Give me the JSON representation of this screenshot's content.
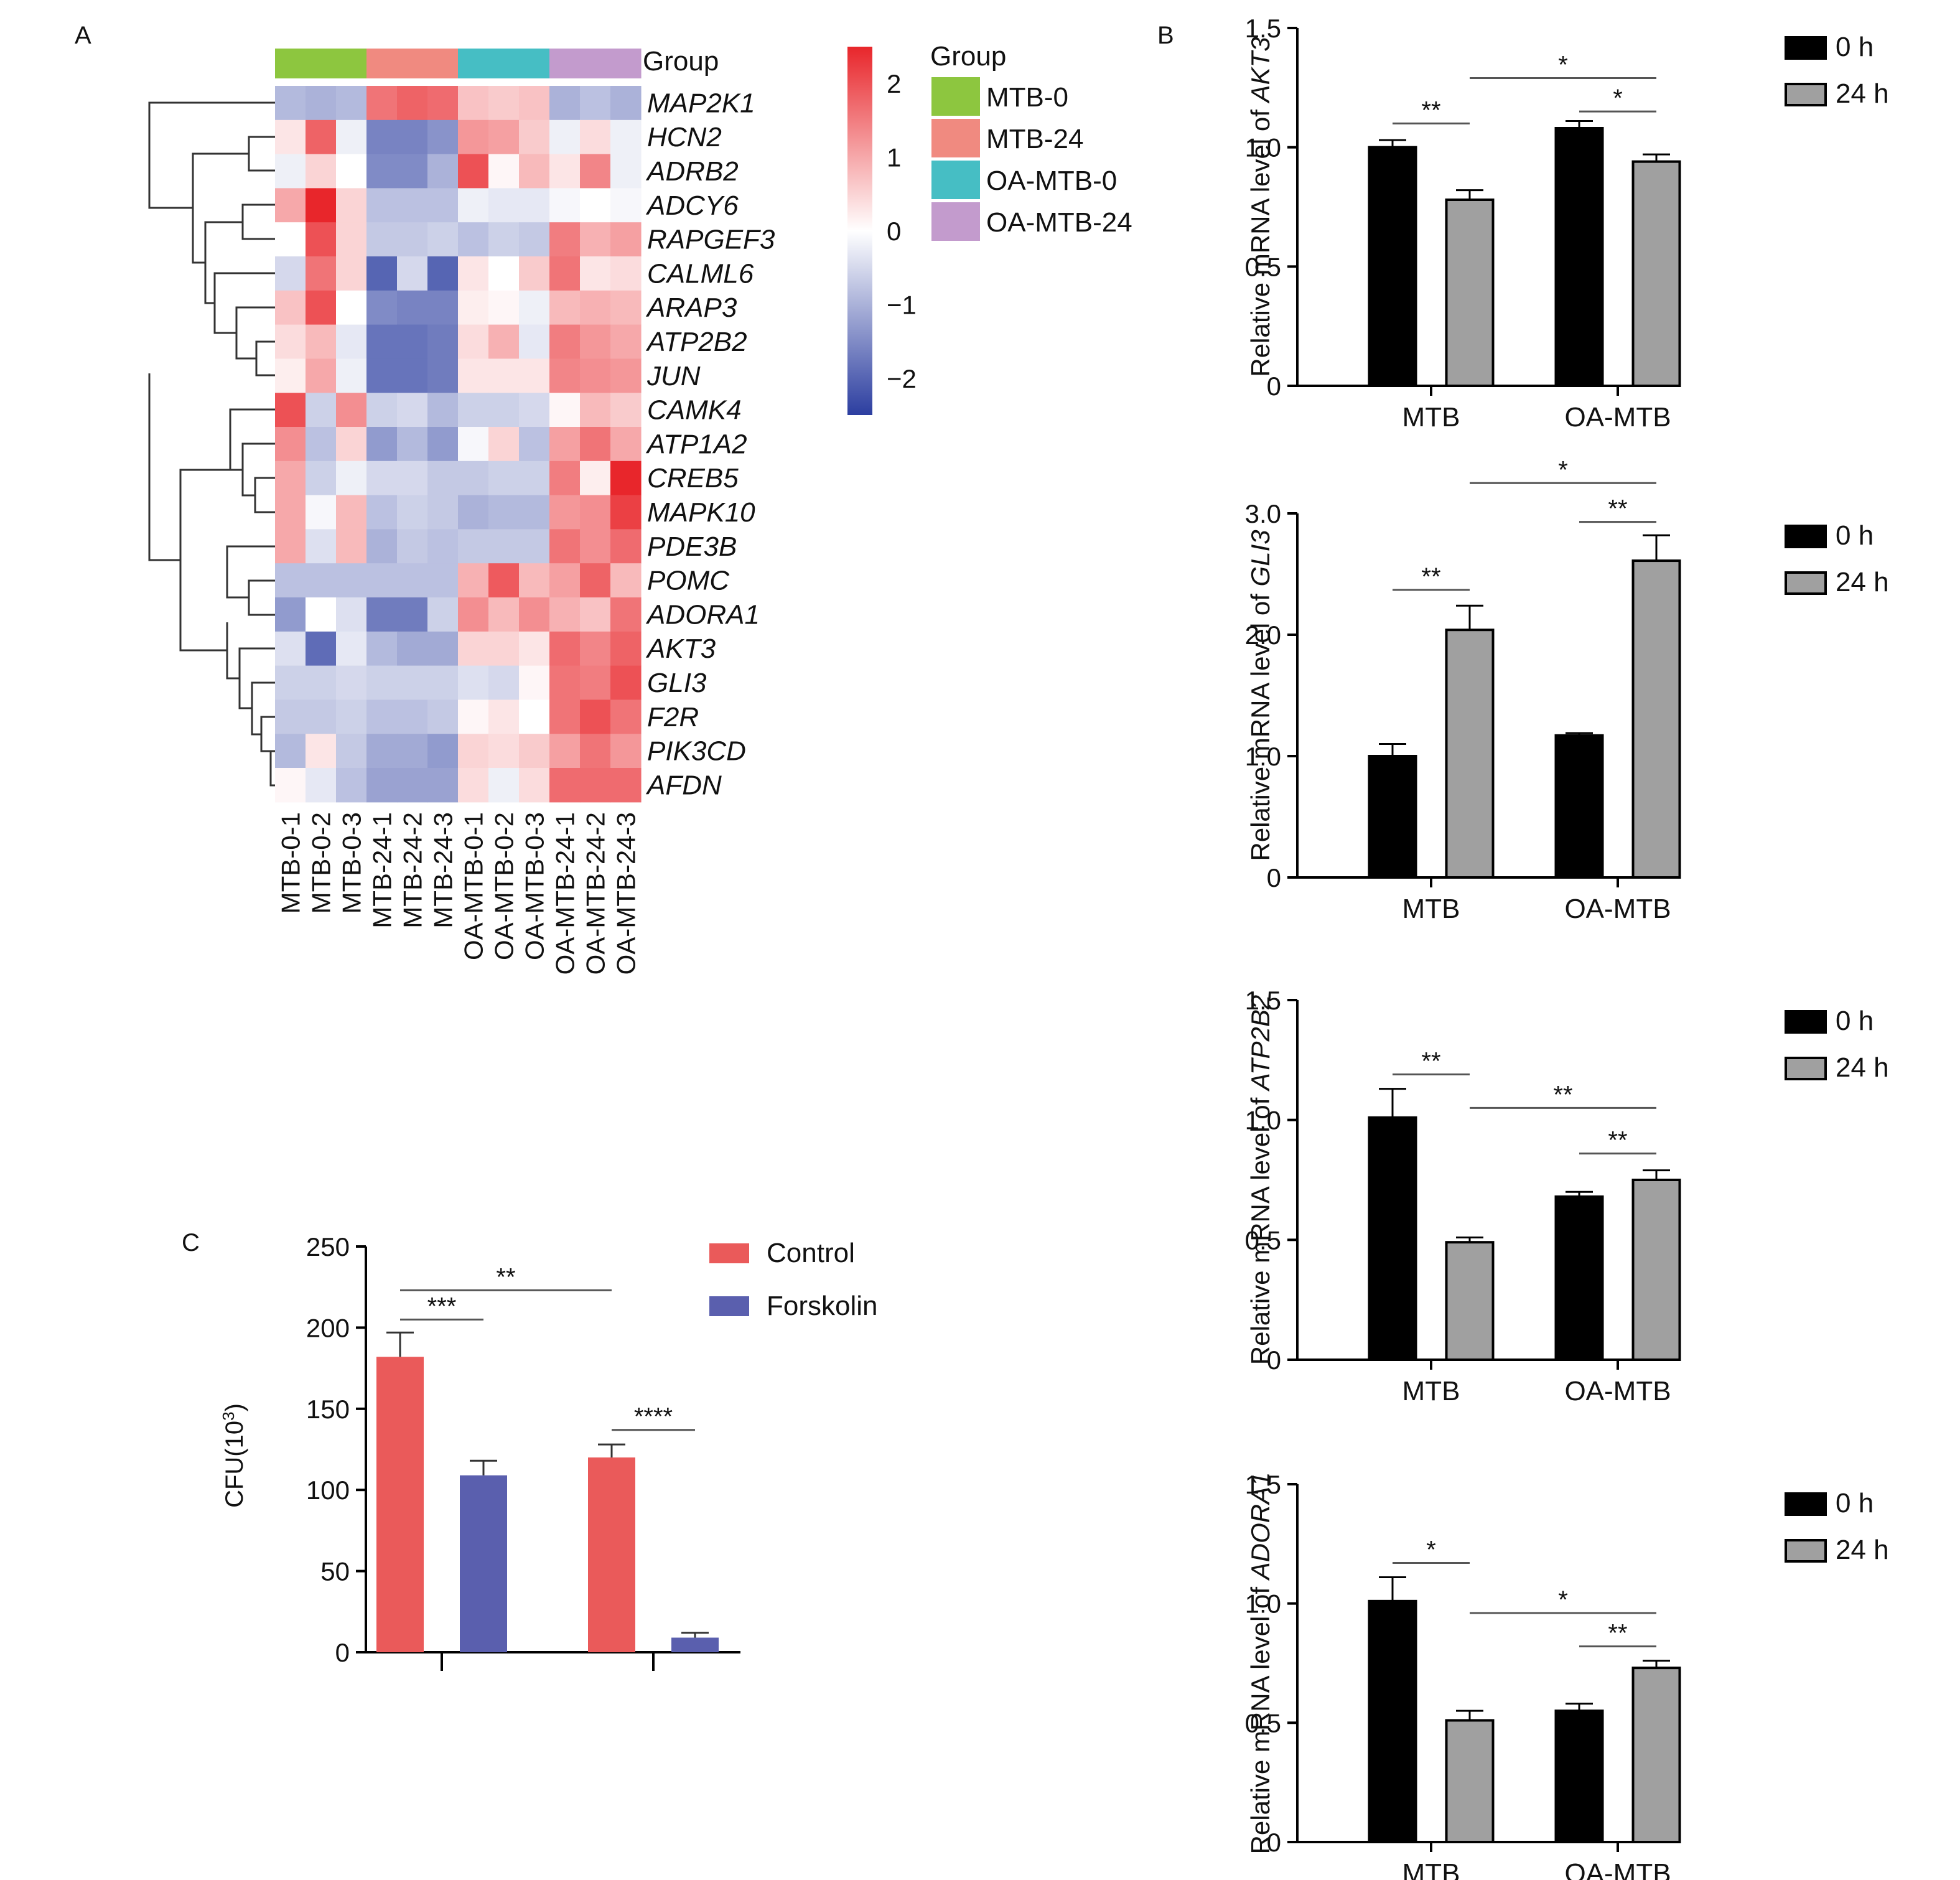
{
  "panel_labels": {
    "a": "A",
    "b": "B",
    "c": "C"
  },
  "heatmap": {
    "group_title": "Group",
    "legend_title": "Group",
    "color_scale": {
      "min": -2.5,
      "max": 2.5,
      "low": "#2c3ea0",
      "mid": "#ffffff",
      "high": "#e8262b",
      "ticks": [
        "2",
        "1",
        "0",
        "−1",
        "−2"
      ]
    },
    "groups": [
      {
        "name": "MTB-0",
        "color": "#8dc63f"
      },
      {
        "name": "MTB-24",
        "color": "#f08a80"
      },
      {
        "name": "OA-MTB-0",
        "color": "#46bec4"
      },
      {
        "name": "OA-MTB-24",
        "color": "#c39bcd"
      }
    ],
    "samples": [
      "MTB-0-1",
      "MTB-0-2",
      "MTB-0-3",
      "MTB-24-1",
      "MTB-24-2",
      "MTB-24-3",
      "OA-MTB-0-1",
      "OA-MTB-0-2",
      "OA-MTB-0-3",
      "OA-MTB-24-1",
      "OA-MTB-24-2",
      "OA-MTB-24-3"
    ],
    "genes": [
      "MAP2K1",
      "HCN2",
      "ADRB2",
      "ADCY6",
      "RAPGEF3",
      "CALML6",
      "ARAP3",
      "ATP2B2",
      "JUN",
      "CAMK4",
      "ATP1A2",
      "CREB5",
      "MAPK10",
      "PDE3B",
      "POMC",
      "ADORA1",
      "AKT3",
      "GLI3",
      "F2R",
      "PIK3CD",
      "AFDN"
    ]
  },
  "chart_data": [
    {
      "type": "heatmap",
      "x": [
        "MTB-0-1",
        "MTB-0-2",
        "MTB-0-3",
        "MTB-24-1",
        "MTB-24-2",
        "MTB-24-3",
        "OA-MTB-0-1",
        "OA-MTB-0-2",
        "OA-MTB-0-3",
        "OA-MTB-24-1",
        "OA-MTB-24-2",
        "OA-MTB-24-3"
      ],
      "y": [
        "MAP2K1",
        "HCN2",
        "ADRB2",
        "ADCY6",
        "RAPGEF3",
        "CALML6",
        "ARAP3",
        "ATP2B2",
        "JUN",
        "CAMK4",
        "ATP1A2",
        "CREB5",
        "MAPK10",
        "PDE3B",
        "POMC",
        "ADORA1",
        "AKT3",
        "GLI3",
        "F2R",
        "PIK3CD",
        "AFDN"
      ],
      "values": [
        [
          -0.9,
          -1.0,
          -0.9,
          1.6,
          1.8,
          1.7,
          0.7,
          0.6,
          0.7,
          -1.0,
          -0.8,
          -1.0
        ],
        [
          0.3,
          1.8,
          -0.2,
          -1.6,
          -1.6,
          -1.4,
          1.2,
          1.1,
          0.6,
          -0.2,
          0.4,
          -0.2
        ],
        [
          -0.2,
          0.5,
          0.0,
          -1.5,
          -1.5,
          -1.0,
          2.0,
          0.1,
          0.8,
          0.3,
          1.4,
          -0.2
        ],
        [
          1.0,
          2.5,
          0.5,
          -0.8,
          -0.8,
          -0.8,
          -0.2,
          -0.3,
          -0.3,
          -0.1,
          0.0,
          -0.1
        ],
        [
          0.0,
          2.0,
          0.5,
          -0.7,
          -0.7,
          -0.6,
          -0.8,
          -0.6,
          -0.7,
          1.5,
          0.9,
          1.1
        ],
        [
          -0.5,
          1.6,
          0.5,
          -2.0,
          -0.5,
          -2.0,
          0.3,
          0.0,
          0.6,
          1.6,
          0.3,
          0.4
        ],
        [
          0.7,
          2.0,
          0.0,
          -1.5,
          -1.6,
          -1.6,
          0.2,
          0.1,
          -0.2,
          0.8,
          0.9,
          0.8
        ],
        [
          0.4,
          0.8,
          -0.3,
          -1.8,
          -1.8,
          -1.7,
          0.4,
          0.9,
          -0.3,
          1.5,
          1.2,
          1.0
        ],
        [
          0.2,
          1.0,
          -0.2,
          -1.8,
          -1.8,
          -1.7,
          0.3,
          0.3,
          0.3,
          1.4,
          1.3,
          1.2
        ],
        [
          2.0,
          -0.6,
          1.3,
          -0.6,
          -0.5,
          -0.9,
          -0.6,
          -0.6,
          -0.5,
          0.1,
          0.8,
          0.6
        ],
        [
          1.3,
          -0.8,
          0.5,
          -1.3,
          -0.9,
          -1.3,
          -0.1,
          0.5,
          -0.8,
          1.1,
          1.6,
          1.0
        ],
        [
          1.0,
          -0.6,
          -0.2,
          -0.5,
          -0.5,
          -0.7,
          -0.7,
          -0.6,
          -0.6,
          1.5,
          0.2,
          2.5
        ],
        [
          1.0,
          -0.1,
          0.8,
          -0.8,
          -0.6,
          -0.7,
          -1.0,
          -0.9,
          -0.9,
          1.2,
          1.3,
          2.2
        ],
        [
          1.0,
          -0.4,
          0.8,
          -1.0,
          -0.7,
          -0.8,
          -0.7,
          -0.7,
          -0.7,
          1.6,
          1.3,
          1.7
        ],
        [
          -0.8,
          -0.8,
          -0.8,
          -0.8,
          -0.8,
          -0.8,
          0.9,
          1.9,
          0.8,
          1.1,
          1.8,
          0.8
        ],
        [
          -1.3,
          0.0,
          -0.4,
          -1.7,
          -1.7,
          -0.6,
          1.3,
          0.8,
          1.3,
          0.9,
          0.7,
          1.6
        ],
        [
          -0.4,
          -1.9,
          -0.3,
          -0.9,
          -1.1,
          -1.1,
          0.5,
          0.5,
          0.3,
          1.7,
          1.4,
          1.8
        ],
        [
          -0.6,
          -0.6,
          -0.5,
          -0.6,
          -0.6,
          -0.6,
          -0.4,
          -0.5,
          0.1,
          1.6,
          1.5,
          2.0
        ],
        [
          -0.7,
          -0.7,
          -0.6,
          -0.8,
          -0.8,
          -0.7,
          0.1,
          0.3,
          0.0,
          1.6,
          2.0,
          1.6
        ],
        [
          -0.9,
          0.3,
          -0.7,
          -1.1,
          -1.1,
          -1.3,
          0.5,
          0.4,
          0.6,
          1.1,
          1.6,
          1.2
        ],
        [
          0.1,
          -0.3,
          -0.8,
          -1.2,
          -1.2,
          -1.2,
          0.4,
          -0.2,
          0.4,
          1.7,
          1.7,
          1.7
        ]
      ]
    },
    {
      "type": "bar",
      "categories": [
        "MTB",
        "OA-MTB"
      ],
      "ylabel_prefix": "Relative mRNA level of ",
      "ylabel_gene": "AKT3",
      "ylim": [
        0,
        1.5
      ],
      "ticks": [
        {
          "v": 0,
          "t": "0"
        },
        {
          "v": 0.5,
          "t": "0.5"
        },
        {
          "v": 1.0,
          "t": "1.0"
        },
        {
          "v": 1.5,
          "t": "1.5"
        }
      ],
      "series": [
        {
          "name": "0 h",
          "values": [
            1.0,
            1.08
          ],
          "errors": [
            0.03,
            0.03
          ]
        },
        {
          "name": "24 h",
          "values": [
            0.78,
            0.94
          ],
          "errors": [
            0.04,
            0.03
          ]
        }
      ],
      "significance": [
        {
          "label": "**",
          "from": [
            0,
            0
          ],
          "to": [
            0,
            1
          ],
          "y": 1.1
        },
        {
          "label": "*",
          "from": [
            1,
            0
          ],
          "to": [
            1,
            1
          ],
          "y": 1.15
        },
        {
          "label": "*",
          "from": [
            0,
            1
          ],
          "to": [
            1,
            1
          ],
          "y": 1.29
        }
      ]
    },
    {
      "type": "bar",
      "categories": [
        "MTB",
        "OA-MTB"
      ],
      "ylabel_prefix": "Relative mRNA level of ",
      "ylabel_gene": "GLI3",
      "ylim": [
        0,
        3.0
      ],
      "ticks": [
        {
          "v": 0,
          "t": "0"
        },
        {
          "v": 1.0,
          "t": "1.0"
        },
        {
          "v": 2.0,
          "t": "2.0"
        },
        {
          "v": 3.0,
          "t": "3.0"
        }
      ],
      "series": [
        {
          "name": "0 h",
          "values": [
            1.0,
            1.17
          ],
          "errors": [
            0.1,
            0.02
          ]
        },
        {
          "name": "24 h",
          "values": [
            2.04,
            2.61
          ],
          "errors": [
            0.2,
            0.21
          ]
        }
      ],
      "significance": [
        {
          "label": "**",
          "from": [
            0,
            0
          ],
          "to": [
            0,
            1
          ],
          "y": 2.37
        },
        {
          "label": "**",
          "from": [
            1,
            0
          ],
          "to": [
            1,
            1
          ],
          "y": 2.93
        },
        {
          "label": "*",
          "from": [
            0,
            1
          ],
          "to": [
            1,
            1
          ],
          "y": 3.25
        }
      ]
    },
    {
      "type": "bar",
      "categories": [
        "MTB",
        "OA-MTB"
      ],
      "ylabel_prefix": "Relative mRNA level of ",
      "ylabel_gene": "ATP2B2",
      "ylim": [
        0,
        1.5
      ],
      "ticks": [
        {
          "v": 0,
          "t": "0"
        },
        {
          "v": 0.5,
          "t": "0.5"
        },
        {
          "v": 1.0,
          "t": "1.0"
        },
        {
          "v": 1.5,
          "t": "1.5"
        }
      ],
      "series": [
        {
          "name": "0 h",
          "values": [
            1.01,
            0.68
          ],
          "errors": [
            0.12,
            0.02
          ]
        },
        {
          "name": "24 h",
          "values": [
            0.49,
            0.75
          ],
          "errors": [
            0.02,
            0.04
          ]
        }
      ],
      "significance": [
        {
          "label": "**",
          "from": [
            0,
            0
          ],
          "to": [
            0,
            1
          ],
          "y": 1.19
        },
        {
          "label": "**",
          "from": [
            1,
            0
          ],
          "to": [
            1,
            1
          ],
          "y": 0.86
        },
        {
          "label": "**",
          "from": [
            0,
            1
          ],
          "to": [
            1,
            1
          ],
          "y": 1.05
        }
      ]
    },
    {
      "type": "bar",
      "categories": [
        "MTB",
        "OA-MTB"
      ],
      "ylabel_prefix": "Relative mRNA level of ",
      "ylabel_gene": "ADORA1",
      "ylim": [
        0,
        1.5
      ],
      "ticks": [
        {
          "v": 0,
          "t": "0"
        },
        {
          "v": 0.5,
          "t": "0.5"
        },
        {
          "v": 1.0,
          "t": "1.0"
        },
        {
          "v": 1.5,
          "t": "1.5"
        }
      ],
      "series": [
        {
          "name": "0 h",
          "values": [
            1.01,
            0.55
          ],
          "errors": [
            0.1,
            0.03
          ]
        },
        {
          "name": "24 h",
          "values": [
            0.51,
            0.73
          ],
          "errors": [
            0.04,
            0.03
          ]
        }
      ],
      "significance": [
        {
          "label": "*",
          "from": [
            0,
            0
          ],
          "to": [
            0,
            1
          ],
          "y": 1.17
        },
        {
          "label": "**",
          "from": [
            1,
            0
          ],
          "to": [
            1,
            1
          ],
          "y": 0.82
        },
        {
          "label": "*",
          "from": [
            0,
            1
          ],
          "to": [
            1,
            1
          ],
          "y": 0.96
        }
      ]
    },
    {
      "type": "bar",
      "ylabel_main": "CFU(10",
      "ylabel_sup": "3",
      "ylabel_end": ")",
      "ylim": [
        0,
        250
      ],
      "ticks": [
        {
          "v": 0,
          "t": "0"
        },
        {
          "v": 50,
          "t": "50"
        },
        {
          "v": 100,
          "t": "100"
        },
        {
          "v": 150,
          "t": "150"
        },
        {
          "v": 200,
          "t": "200"
        },
        {
          "v": 250,
          "t": "250"
        }
      ],
      "series": [
        {
          "name": "Control",
          "color": "#ea5a5a",
          "values": [
            182,
            120
          ],
          "errors": [
            15,
            8
          ]
        },
        {
          "name": "Forskolin",
          "color": "#5a5fae",
          "values": [
            109,
            9
          ],
          "errors": [
            9,
            3
          ]
        }
      ],
      "significance": [
        {
          "label": "***",
          "from": [
            0,
            0
          ],
          "to": [
            0,
            1
          ],
          "y": 205
        },
        {
          "label": "**",
          "from": [
            0,
            0
          ],
          "to": [
            1,
            0
          ],
          "y": 223
        },
        {
          "label": "****",
          "from": [
            1,
            0
          ],
          "to": [
            1,
            1
          ],
          "y": 137
        }
      ]
    }
  ]
}
